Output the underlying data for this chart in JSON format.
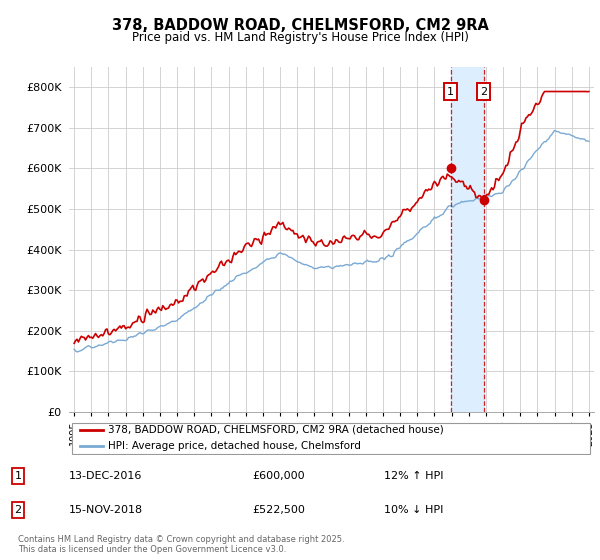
{
  "title": "378, BADDOW ROAD, CHELMSFORD, CM2 9RA",
  "subtitle": "Price paid vs. HM Land Registry's House Price Index (HPI)",
  "legend_label1": "378, BADDOW ROAD, CHELMSFORD, CM2 9RA (detached house)",
  "legend_label2": "HPI: Average price, detached house, Chelmsford",
  "annotation1_date": "13-DEC-2016",
  "annotation1_price": "£600,000",
  "annotation1_hpi": "12% ↑ HPI",
  "annotation2_date": "15-NOV-2018",
  "annotation2_price": "£522,500",
  "annotation2_hpi": "10% ↓ HPI",
  "footer": "Contains HM Land Registry data © Crown copyright and database right 2025.\nThis data is licensed under the Open Government Licence v3.0.",
  "line1_color": "#cc0000",
  "line2_color": "#7aaad4",
  "vline_color": "#cc0000",
  "highlight_color": "#ddeeff",
  "ylim": [
    0,
    850000
  ],
  "yticks": [
    0,
    100000,
    200000,
    300000,
    400000,
    500000,
    600000,
    700000,
    800000
  ],
  "ytick_labels": [
    "£0",
    "£100K",
    "£200K",
    "£300K",
    "£400K",
    "£500K",
    "£600K",
    "£700K",
    "£800K"
  ],
  "sale1_year": 2016.95,
  "sale2_year": 2018.87,
  "sale1_price": 600000,
  "sale2_price": 522500,
  "xmin": 1995,
  "xmax": 2025
}
